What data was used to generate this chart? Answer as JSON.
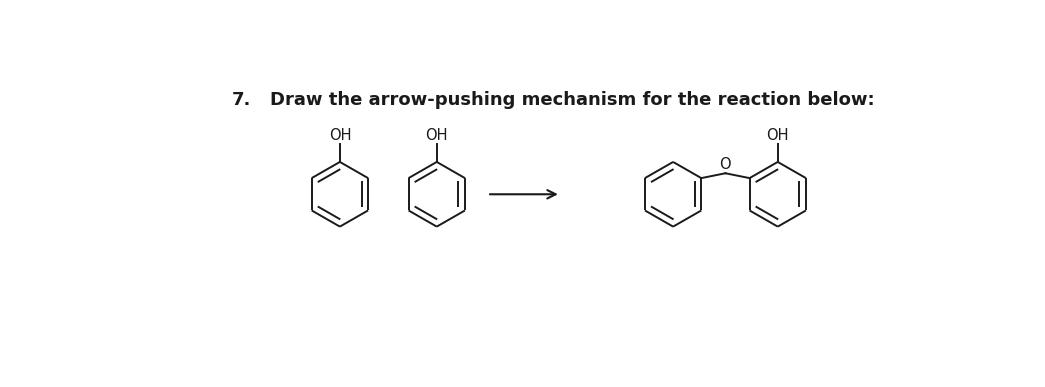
{
  "title_number": "7.",
  "title_text": "Draw the arrow-pushing mechanism for the reaction below:",
  "title_fontsize": 13,
  "title_bold": true,
  "bg_color": "#ffffff",
  "line_color": "#1a1a1a",
  "text_color": "#1a1a1a",
  "fig_width": 10.45,
  "fig_height": 3.87,
  "oh_label": "OH",
  "o_label": "O"
}
